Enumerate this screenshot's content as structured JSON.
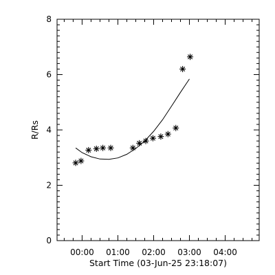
{
  "chart_data": {
    "type": "scatter",
    "title": "",
    "xlabel": "Start Time (03-Jun-25 23:18:07)",
    "ylabel": "R/Rs",
    "x_unit": "hours relative to 00:00",
    "xlim": [
      -0.7,
      4.95
    ],
    "ylim": [
      0,
      8
    ],
    "x_major_ticks": [
      0,
      1,
      2,
      3,
      4
    ],
    "x_tick_labels": [
      "00:00",
      "01:00",
      "02:00",
      "03:00",
      "04:00"
    ],
    "y_major_ticks": [
      0,
      2,
      4,
      6,
      8
    ],
    "y_tick_labels": [
      "0",
      "2",
      "4",
      "6",
      "8"
    ],
    "grid": false,
    "series": [
      {
        "kind": "points",
        "marker": "asterisk",
        "x": [
          -0.18,
          -0.03,
          0.18,
          0.4,
          0.58,
          0.8,
          1.42,
          1.6,
          1.78,
          1.98,
          2.2,
          2.4,
          2.62,
          2.81,
          3.02
        ],
        "y": [
          2.81,
          2.88,
          3.27,
          3.32,
          3.35,
          3.35,
          3.35,
          3.52,
          3.6,
          3.7,
          3.76,
          3.85,
          4.07,
          6.2,
          6.64
        ]
      },
      {
        "kind": "fit",
        "x": [
          -0.18,
          0.0,
          0.25,
          0.5,
          0.75,
          1.0,
          1.25,
          1.5,
          1.75,
          2.0,
          2.25,
          2.5,
          2.75,
          3.0
        ],
        "y": [
          3.35,
          3.18,
          3.03,
          2.95,
          2.94,
          2.99,
          3.12,
          3.33,
          3.6,
          3.95,
          4.37,
          4.86,
          5.36,
          5.84
        ]
      }
    ]
  }
}
